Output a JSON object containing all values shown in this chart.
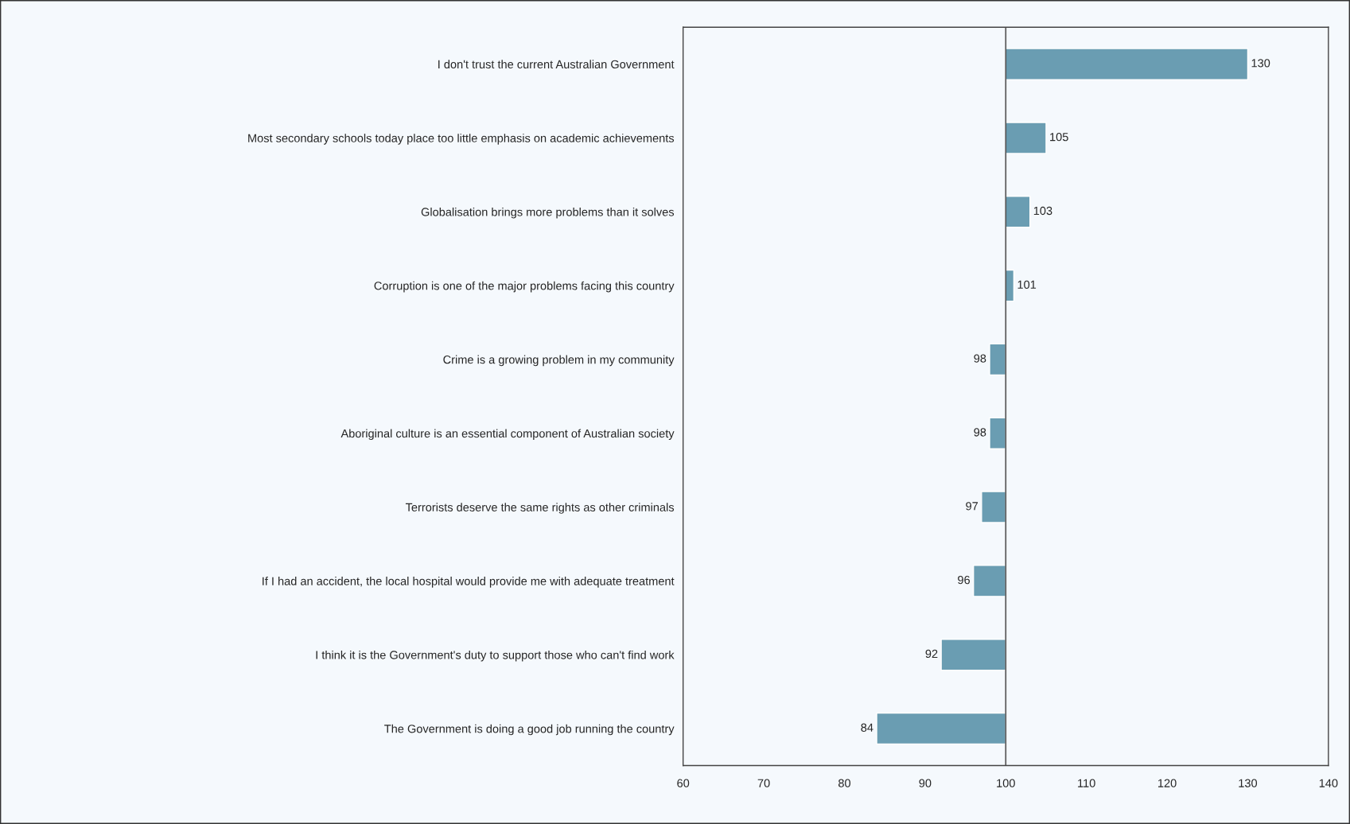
{
  "chart_data": {
    "type": "bar",
    "orientation": "horizontal",
    "categories": [
      "I don't trust the current Australian Government",
      "Most secondary schools today place too little emphasis on academic achievements",
      "Globalisation brings more problems than it solves",
      "Corruption is one of the major problems facing this country",
      "Crime is a growing problem in my community",
      "Aboriginal culture is an essential component of Australian society",
      "Terrorists deserve the same rights as other criminals",
      "If I had an accident, the local hospital would provide me with adequate treatment",
      "I think it is the Government's duty to support those who can't find work",
      "The Government is doing a good job running the country"
    ],
    "base": [
      100,
      100,
      100,
      100,
      100,
      100,
      100,
      100,
      100,
      100
    ],
    "values": [
      30,
      5,
      3,
      1,
      -2,
      -2,
      -3,
      -4,
      -8,
      -16
    ],
    "value_labels": [
      "130",
      "105",
      "103",
      "101",
      "98",
      "98",
      "97",
      "96",
      "92",
      "84"
    ],
    "color": "#6a9db2",
    "xlim": [
      60,
      140
    ],
    "xticks": [
      60,
      70,
      80,
      90,
      100,
      110,
      120,
      130,
      140
    ],
    "ref_lines": [
      {
        "axis": "x",
        "value": 100,
        "color": "#555555"
      }
    ],
    "grid": false,
    "legend": false
  }
}
